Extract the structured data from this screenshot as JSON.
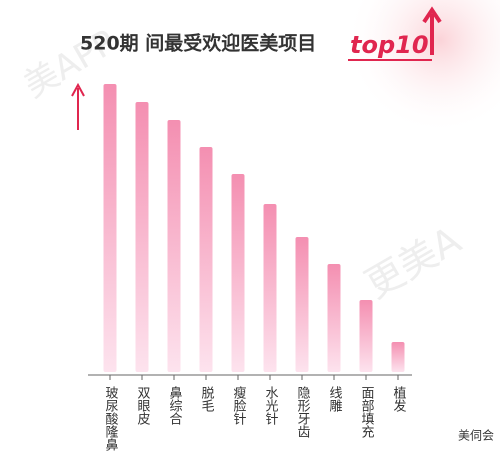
{
  "chart_data": {
    "type": "bar",
    "title": "520期 间最受欢迎医美项目",
    "badge": "top10",
    "categories": [
      "玻尿酸隆鼻",
      "双眼皮",
      "鼻综合",
      "脱毛",
      "瘦脸针",
      "水光针",
      "隐形牙齿",
      "线雕",
      "面部填充",
      "植发"
    ],
    "values": [
      96,
      90,
      84,
      75,
      66,
      56,
      45,
      36,
      24,
      10
    ],
    "color": "#f48fb1",
    "ylim": [
      0,
      100
    ],
    "watermarks": [
      "美APP",
      "更美A"
    ],
    "source": "美伺会"
  }
}
